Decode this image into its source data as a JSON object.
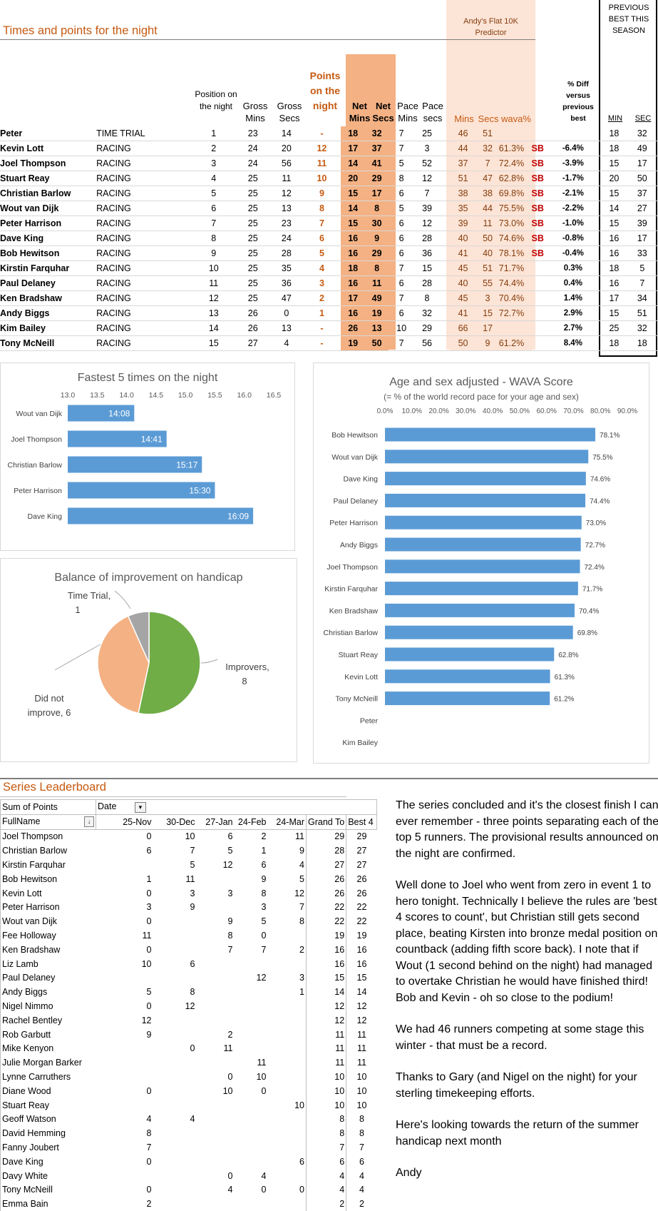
{
  "section_title": "Times and points for the night",
  "predictor_title": "Andy's Flat 10K Predictor",
  "previous_best_title": "PREVIOUS BEST THIS SEASON",
  "headers": {
    "position": "Position on the night",
    "gross_mins": "Gross Mins",
    "gross_secs": "Gross Secs",
    "points": "Points on the night",
    "net_mins": "Net Mins",
    "net_secs": "Net Secs",
    "pace_mins": "Pace Mins",
    "pace_secs": "Pace secs",
    "pred_mins": "Mins",
    "pred_secs": "Secs",
    "wava": "wava%",
    "diff": "% Diff versus previous best",
    "prev_min": "MIN",
    "prev_sec": "SEC"
  },
  "results": [
    {
      "name": "Peter",
      "type": "TIME TRIAL",
      "pos": "1",
      "gm": "23",
      "gs": "14",
      "pts": "-",
      "nm": "18",
      "ns": "32",
      "pm": "7",
      "ps": "25",
      "pdm": "46",
      "pds": "51",
      "wava": "",
      "sb": "",
      "diff": "",
      "bm": "18",
      "bs": "32"
    },
    {
      "name": "Kevin Lott",
      "type": "RACING",
      "pos": "2",
      "gm": "24",
      "gs": "20",
      "pts": "12",
      "nm": "17",
      "ns": "37",
      "pm": "7",
      "ps": "3",
      "pdm": "44",
      "pds": "32",
      "wava": "61.3%",
      "sb": "SB",
      "diff": "-6.4%",
      "bm": "18",
      "bs": "49"
    },
    {
      "name": "Joel Thompson",
      "type": "RACING",
      "pos": "3",
      "gm": "24",
      "gs": "56",
      "pts": "11",
      "nm": "14",
      "ns": "41",
      "pm": "5",
      "ps": "52",
      "pdm": "37",
      "pds": "7",
      "wava": "72.4%",
      "sb": "SB",
      "diff": "-3.9%",
      "bm": "15",
      "bs": "17"
    },
    {
      "name": "Stuart Reay",
      "type": "RACING",
      "pos": "4",
      "gm": "25",
      "gs": "11",
      "pts": "10",
      "nm": "20",
      "ns": "29",
      "pm": "8",
      "ps": "12",
      "pdm": "51",
      "pds": "47",
      "wava": "62.8%",
      "sb": "SB",
      "diff": "-1.7%",
      "bm": "20",
      "bs": "50"
    },
    {
      "name": "Christian Barlow",
      "type": "RACING",
      "pos": "5",
      "gm": "25",
      "gs": "12",
      "pts": "9",
      "nm": "15",
      "ns": "17",
      "pm": "6",
      "ps": "7",
      "pdm": "38",
      "pds": "38",
      "wava": "69.8%",
      "sb": "SB",
      "diff": "-2.1%",
      "bm": "15",
      "bs": "37"
    },
    {
      "name": "Wout van Dijk",
      "type": "RACING",
      "pos": "6",
      "gm": "25",
      "gs": "13",
      "pts": "8",
      "nm": "14",
      "ns": "8",
      "pm": "5",
      "ps": "39",
      "pdm": "35",
      "pds": "44",
      "wava": "75.5%",
      "sb": "SB",
      "diff": "-2.2%",
      "bm": "14",
      "bs": "27"
    },
    {
      "name": "Peter Harrison",
      "type": "RACING",
      "pos": "7",
      "gm": "25",
      "gs": "23",
      "pts": "7",
      "nm": "15",
      "ns": "30",
      "pm": "6",
      "ps": "12",
      "pdm": "39",
      "pds": "11",
      "wava": "73.0%",
      "sb": "SB",
      "diff": "-1.0%",
      "bm": "15",
      "bs": "39"
    },
    {
      "name": "Dave King",
      "type": "RACING",
      "pos": "8",
      "gm": "25",
      "gs": "24",
      "pts": "6",
      "nm": "16",
      "ns": "9",
      "pm": "6",
      "ps": "28",
      "pdm": "40",
      "pds": "50",
      "wava": "74.6%",
      "sb": "SB",
      "diff": "-0.8%",
      "bm": "16",
      "bs": "17"
    },
    {
      "name": "Bob Hewitson",
      "type": "RACING",
      "pos": "9",
      "gm": "25",
      "gs": "28",
      "pts": "5",
      "nm": "16",
      "ns": "29",
      "pm": "6",
      "ps": "36",
      "pdm": "41",
      "pds": "40",
      "wava": "78.1%",
      "sb": "SB",
      "diff": "-0.4%",
      "bm": "16",
      "bs": "33"
    },
    {
      "name": "Kirstin Farquhar",
      "type": "RACING",
      "pos": "10",
      "gm": "25",
      "gs": "35",
      "pts": "4",
      "nm": "18",
      "ns": "8",
      "pm": "7",
      "ps": "15",
      "pdm": "45",
      "pds": "51",
      "wava": "71.7%",
      "sb": "",
      "diff": "0.3%",
      "bm": "18",
      "bs": "5"
    },
    {
      "name": "Paul Delaney",
      "type": "RACING",
      "pos": "11",
      "gm": "25",
      "gs": "36",
      "pts": "3",
      "nm": "16",
      "ns": "11",
      "pm": "6",
      "ps": "28",
      "pdm": "40",
      "pds": "55",
      "wava": "74.4%",
      "sb": "",
      "diff": "0.4%",
      "bm": "16",
      "bs": "7"
    },
    {
      "name": "Ken Bradshaw",
      "type": "RACING",
      "pos": "12",
      "gm": "25",
      "gs": "47",
      "pts": "2",
      "nm": "17",
      "ns": "49",
      "pm": "7",
      "ps": "8",
      "pdm": "45",
      "pds": "3",
      "wava": "70.4%",
      "sb": "",
      "diff": "1.4%",
      "bm": "17",
      "bs": "34"
    },
    {
      "name": "Andy Biggs",
      "type": "RACING",
      "pos": "13",
      "gm": "26",
      "gs": "0",
      "pts": "1",
      "nm": "16",
      "ns": "19",
      "pm": "6",
      "ps": "32",
      "pdm": "41",
      "pds": "15",
      "wava": "72.7%",
      "sb": "",
      "diff": "2.9%",
      "bm": "15",
      "bs": "51"
    },
    {
      "name": "Kim Bailey",
      "type": "RACING",
      "pos": "14",
      "gm": "26",
      "gs": "13",
      "pts": "-",
      "nm": "26",
      "ns": "13",
      "pm": "10",
      "ps": "29",
      "pdm": "66",
      "pds": "17",
      "wava": "",
      "sb": "",
      "diff": "2.7%",
      "bm": "25",
      "bs": "32"
    },
    {
      "name": "Tony McNeill",
      "type": "RACING",
      "pos": "15",
      "gm": "27",
      "gs": "4",
      "pts": "-",
      "nm": "19",
      "ns": "50",
      "pm": "7",
      "ps": "56",
      "pdm": "50",
      "pds": "9",
      "wava": "61.2%",
      "sb": "",
      "diff": "8.4%",
      "bm": "18",
      "bs": "18"
    }
  ],
  "chart_data": [
    {
      "type": "bar",
      "orientation": "horizontal",
      "title": "Fastest 5 times on the night",
      "categories": [
        "Wout van Dijk",
        "Joel Thompson",
        "Christian Barlow",
        "Peter Harrison",
        "Dave King"
      ],
      "values": [
        14.13,
        14.68,
        15.28,
        15.5,
        16.15
      ],
      "data_labels": [
        "14:08",
        "14:41",
        "15:17",
        "15:30",
        "16:09"
      ],
      "xlim": [
        13.0,
        16.5
      ],
      "ticks": [
        "13.0",
        "13.5",
        "14.0",
        "14.5",
        "15.0",
        "15.5",
        "16.0",
        "16.5"
      ],
      "color": "#5b9bd5"
    },
    {
      "type": "pie",
      "title": "Balance of improvement on handicap",
      "slices": [
        {
          "label": "Improvers, 8",
          "value": 8,
          "color": "#70ad47"
        },
        {
          "label": "Did not improve, 6",
          "value": 6,
          "color": "#f4b183"
        },
        {
          "label": "Time Trial, 1",
          "value": 1,
          "color": "#a5a5a5"
        }
      ]
    },
    {
      "type": "bar",
      "orientation": "horizontal",
      "title": "Age and sex adjusted - WAVA Score",
      "subtitle": "(= % of the world record pace for your age and sex)",
      "categories": [
        "Bob Hewitson",
        "Wout van Dijk",
        "Dave King",
        "Paul Delaney",
        "Peter Harrison",
        "Andy Biggs",
        "Joel Thompson",
        "Kirstin Farquhar",
        "Ken Bradshaw",
        "Christian Barlow",
        "Stuart Reay",
        "Kevin Lott",
        "Tony McNeill",
        "Peter",
        "Kim Bailey"
      ],
      "values": [
        78.1,
        75.5,
        74.6,
        74.4,
        73.0,
        72.7,
        72.4,
        71.7,
        70.4,
        69.8,
        62.8,
        61.3,
        61.2,
        null,
        null
      ],
      "data_labels": [
        "78.1%",
        "75.5%",
        "74.6%",
        "74.4%",
        "73.0%",
        "72.7%",
        "72.4%",
        "71.7%",
        "70.4%",
        "69.8%",
        "62.8%",
        "61.3%",
        "61.2%",
        "",
        ""
      ],
      "xlim": [
        0,
        90
      ],
      "ticks": [
        "0.0%",
        "10.0%",
        "20.0%",
        "30.0%",
        "40.0%",
        "50.0%",
        "60.0%",
        "70.0%",
        "80.0%",
        "90.0%"
      ],
      "color": "#5b9bd5"
    }
  ],
  "leaderboard": {
    "title": "Series Leaderboard",
    "sum_label": "Sum of Points",
    "date_label": "Date",
    "name_header": "FullName",
    "dates": [
      "25-Nov",
      "30-Dec",
      "27-Jan",
      "24-Feb",
      "24-Mar"
    ],
    "grand_header": "Grand To",
    "best_header": "Best 4",
    "rows": [
      [
        "Joel Thompson",
        "0",
        "10",
        "6",
        "2",
        "11",
        "29",
        "29"
      ],
      [
        "Christian Barlow",
        "6",
        "7",
        "5",
        "1",
        "9",
        "28",
        "27"
      ],
      [
        "Kirstin Farquhar",
        "",
        "5",
        "12",
        "6",
        "4",
        "27",
        "27"
      ],
      [
        "Bob Hewitson",
        "1",
        "11",
        "",
        "9",
        "5",
        "26",
        "26"
      ],
      [
        "Kevin Lott",
        "0",
        "3",
        "3",
        "8",
        "12",
        "26",
        "26"
      ],
      [
        "Peter Harrison",
        "3",
        "9",
        "",
        "3",
        "7",
        "22",
        "22"
      ],
      [
        "Wout van Dijk",
        "0",
        "",
        "9",
        "5",
        "8",
        "22",
        "22"
      ],
      [
        "Fee Holloway",
        "11",
        "",
        "8",
        "0",
        "",
        "19",
        "19"
      ],
      [
        "Ken Bradshaw",
        "0",
        "",
        "7",
        "7",
        "2",
        "16",
        "16"
      ],
      [
        "Liz Lamb",
        "10",
        "6",
        "",
        "",
        "",
        "16",
        "16"
      ],
      [
        "Paul Delaney",
        "",
        "",
        "",
        "12",
        "3",
        "15",
        "15"
      ],
      [
        "Andy Biggs",
        "5",
        "8",
        "",
        "",
        "1",
        "14",
        "14"
      ],
      [
        "Nigel Nimmo",
        "0",
        "12",
        "",
        "",
        "",
        "12",
        "12"
      ],
      [
        "Rachel Bentley",
        "12",
        "",
        "",
        "",
        "",
        "12",
        "12"
      ],
      [
        "Rob Garbutt",
        "9",
        "",
        "2",
        "",
        "",
        "11",
        "11"
      ],
      [
        "Mike Kenyon",
        "",
        "0",
        "11",
        "",
        "",
        "11",
        "11"
      ],
      [
        "Julie Morgan Barker",
        "",
        "",
        "",
        "11",
        "",
        "11",
        "11"
      ],
      [
        "Lynne Carruthers",
        "",
        "",
        "0",
        "10",
        "",
        "10",
        "10"
      ],
      [
        "Diane Wood",
        "0",
        "",
        "10",
        "0",
        "",
        "10",
        "10"
      ],
      [
        "Stuart Reay",
        "",
        "",
        "",
        "",
        "10",
        "10",
        "10"
      ],
      [
        "Geoff Watson",
        "4",
        "4",
        "",
        "",
        "",
        "8",
        "8"
      ],
      [
        "David Hemming",
        "8",
        "",
        "",
        "",
        "",
        "8",
        "8"
      ],
      [
        "Fanny Joubert",
        "7",
        "",
        "",
        "",
        "",
        "7",
        "7"
      ],
      [
        "Dave King",
        "0",
        "",
        "",
        "",
        "6",
        "6",
        "6"
      ],
      [
        "Davy White",
        "",
        "",
        "0",
        "4",
        "",
        "4",
        "4"
      ],
      [
        "Tony McNeill",
        "0",
        "",
        "4",
        "0",
        "0",
        "4",
        "4"
      ],
      [
        "Emma Bain",
        "2",
        "",
        "",
        "",
        "",
        "2",
        "2"
      ]
    ]
  },
  "notes": [
    "The series concluded and it's the closest finish I can ever remember - three points separating each of the top 5 runners.  The provisional results announced on the night are confirmed.",
    "Well done to Joel who went from zero in event 1 to hero tonight.  Technically I believe the rules are 'best 4 scores to count', but Christian still gets second place, beating Kirsten into bronze medal position on countback (adding fifth score back).  I note that if Wout (1 second behind on the night)  had managed to overtake Christian he would have finished third!  Bob and Kevin - oh so close to the podium!",
    "We had 46 runners competing at some stage this winter - that must be a record.",
    "Thanks to Gary (and Nigel on the night) for your sterling timekeeping efforts.",
    "Here's looking towards the return of the summer handicap next month",
    "Andy"
  ]
}
